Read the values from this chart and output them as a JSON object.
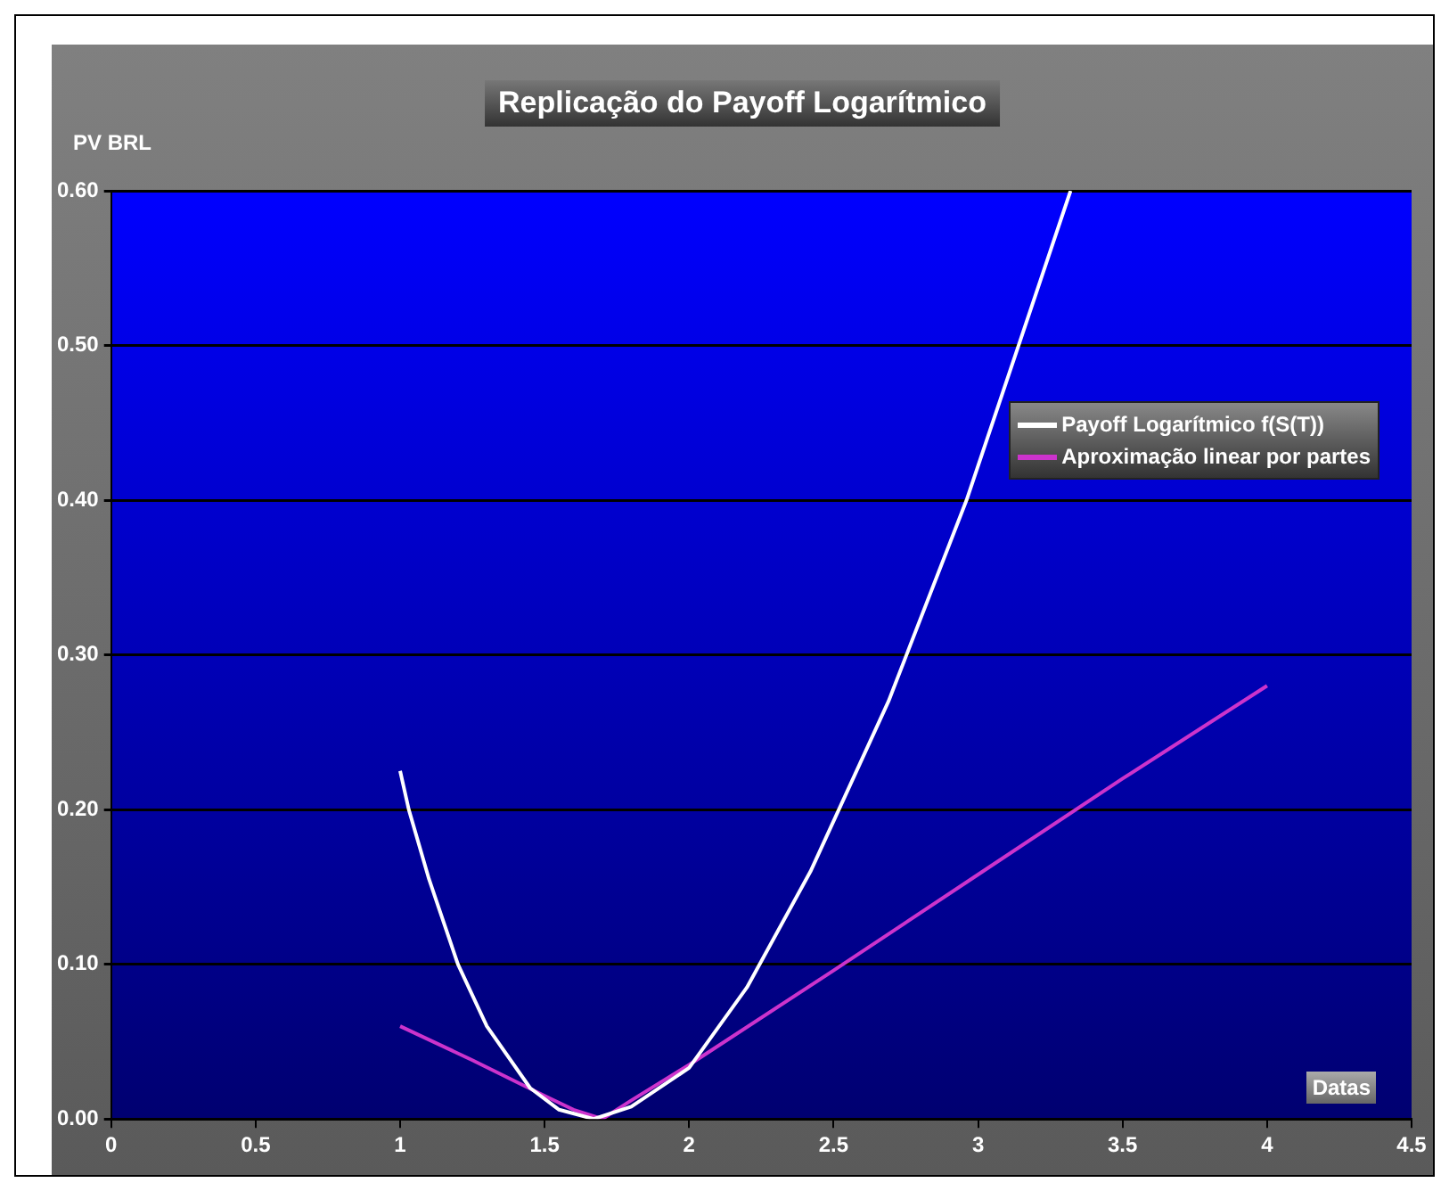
{
  "chart_data": {
    "type": "line",
    "title": "Replicação do Payoff Logarítmico",
    "xlabel": "Datas",
    "ylabel": "PV BRL",
    "xlim": [
      0,
      4.5
    ],
    "xticks": [
      0,
      0.5,
      1,
      1.5,
      2,
      2.5,
      3,
      3.5,
      4,
      4.5
    ],
    "ylim": [
      0,
      0.6
    ],
    "yticks": [
      {
        "value": 0,
        "label": "0.00"
      },
      {
        "value": 0.1,
        "label": "0.10"
      },
      {
        "value": 0.2,
        "label": "0.20"
      },
      {
        "value": 0.3,
        "label": "0.30"
      },
      {
        "value": 0.4,
        "label": "0.40"
      },
      {
        "value": 0.5,
        "label": "0.50"
      },
      {
        "value": 0.6,
        "label": "0.60"
      }
    ],
    "grid": "y",
    "legend": "top right",
    "marker": "none",
    "line_style": "solid",
    "series": [
      {
        "name": "Payoff Logarítmico f(S(T))",
        "color": "#ffffff",
        "x": [
          1,
          1.03,
          1.1,
          1.2,
          1.3,
          1.45,
          1.55,
          1.67,
          1.8,
          2,
          2.2,
          2.42,
          2.69,
          2.96,
          3.14,
          3.32
        ],
        "values": [
          0.225,
          0.2,
          0.155,
          0.1,
          0.06,
          0.02,
          0.006,
          0,
          0.008,
          0.033,
          0.085,
          0.16,
          0.27,
          0.4,
          0.5,
          0.6
        ]
      },
      {
        "name": "Aproximação linear por partes",
        "color": "#cc33cc",
        "x": [
          1,
          1.25,
          1.5,
          1.6,
          1.7,
          1.8,
          2,
          2.5,
          3,
          3.5,
          4
        ],
        "values": [
          0.06,
          0.038,
          0.015,
          0.006,
          0,
          0.012,
          0.035,
          0.096,
          0.158,
          0.22,
          0.28
        ]
      }
    ]
  }
}
